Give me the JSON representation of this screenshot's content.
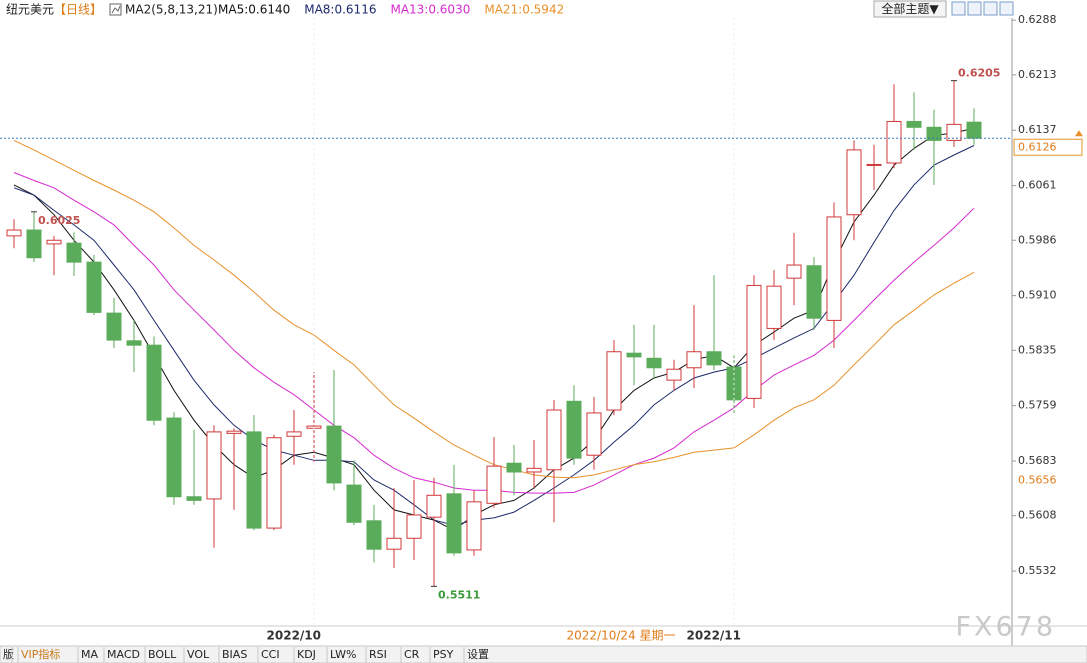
{
  "header": {
    "symbol": "纽元美元",
    "period": "【日线】",
    "indicator": "MA2(5,8,13,21)"
  },
  "chart_data": {
    "type": "candlestick",
    "categories": [
      null,
      null,
      null,
      null,
      null,
      null,
      null,
      null,
      null,
      null,
      null,
      null,
      null,
      null,
      null,
      "2022/10",
      null,
      null,
      null,
      null,
      null,
      null,
      null,
      null,
      null,
      null,
      null,
      null,
      null,
      null,
      null,
      null,
      null,
      null,
      null,
      null,
      "2022/11",
      null,
      null,
      null,
      null,
      null,
      null,
      null,
      null,
      null,
      null,
      null,
      null
    ],
    "open": [
      0.5992,
      0.6,
      0.5981,
      0.5982,
      0.5956,
      0.5886,
      0.5848,
      0.5842,
      0.5742,
      0.5634,
      0.5631,
      0.5721,
      0.5723,
      0.5591,
      0.5717,
      0.5728,
      0.5731,
      0.565,
      0.5601,
      0.5562,
      0.5577,
      0.5606,
      0.5638,
      0.5561,
      0.5625,
      0.568,
      0.5668,
      0.5671,
      0.5765,
      0.5691,
      0.5753,
      0.5831,
      0.5824,
      0.5794,
      0.5811,
      0.5833,
      0.5812,
      0.5769,
      0.5865,
      0.5934,
      0.5951,
      0.5876,
      0.6021,
      0.6089,
      0.6092,
      0.6149,
      0.6141,
      0.6123,
      0.6148
    ],
    "high": [
      0.6015,
      0.6025,
      0.5992,
      0.5997,
      0.5966,
      0.5907,
      0.5876,
      0.5854,
      0.575,
      0.5726,
      0.5732,
      0.5728,
      0.5746,
      0.5719,
      0.5753,
      0.5805,
      0.5808,
      0.5684,
      0.5623,
      0.5646,
      0.5657,
      0.566,
      0.5678,
      0.5643,
      0.5716,
      0.5705,
      0.5712,
      0.5767,
      0.5787,
      0.5771,
      0.5849,
      0.587,
      0.587,
      0.5822,
      0.5897,
      0.5938,
      0.5828,
      0.5938,
      0.5945,
      0.5996,
      0.5963,
      0.6038,
      0.6123,
      0.6117,
      0.62,
      0.6189,
      0.6165,
      0.6205,
      0.6167
    ],
    "low": [
      0.5975,
      0.5956,
      0.5938,
      0.5937,
      0.5883,
      0.5838,
      0.5805,
      0.5732,
      0.5623,
      0.5623,
      0.5564,
      0.5616,
      0.5588,
      0.5588,
      0.5678,
      0.5682,
      0.5643,
      0.5595,
      0.5544,
      0.5536,
      0.5547,
      0.5511,
      0.5553,
      0.5553,
      0.5619,
      0.5636,
      0.5646,
      0.5599,
      0.5678,
      0.5671,
      0.5746,
      0.5787,
      0.5797,
      0.578,
      0.5783,
      0.5808,
      0.5746,
      0.5756,
      0.5849,
      0.5897,
      0.5863,
      0.5838,
      0.5986,
      0.6055,
      0.6085,
      0.611,
      0.6062,
      0.6114,
      0.6117
    ],
    "close": [
      0.6,
      0.5962,
      0.5986,
      0.5956,
      0.5887,
      0.5849,
      0.5842,
      0.5739,
      0.5634,
      0.5629,
      0.5723,
      0.5724,
      0.5591,
      0.5715,
      0.5723,
      0.5731,
      0.5653,
      0.5599,
      0.5562,
      0.5577,
      0.5609,
      0.5636,
      0.5557,
      0.5627,
      0.5676,
      0.5668,
      0.5673,
      0.5753,
      0.5687,
      0.5749,
      0.5833,
      0.5826,
      0.5811,
      0.5809,
      0.5833,
      0.5815,
      0.5767,
      0.5924,
      0.5923,
      0.5952,
      0.5879,
      0.6018,
      0.611,
      0.609,
      0.6149,
      0.6141,
      0.6123,
      0.6145,
      0.6126
    ],
    "up_color": "#d0383a",
    "down_color": "#5aab5a",
    "series": [
      {
        "name": "MA5:0.6140",
        "color": "#111111",
        "values": [
          0.6062,
          0.6048,
          0.6021,
          0.5986,
          0.5956,
          0.5918,
          0.5876,
          0.5828,
          0.578,
          0.5739,
          0.5705,
          0.5678,
          0.566,
          0.5671,
          0.5691,
          0.5695,
          0.5687,
          0.5678,
          0.5643,
          0.5616,
          0.5609,
          0.5602,
          0.5588,
          0.5609,
          0.5623,
          0.5629,
          0.5646,
          0.5671,
          0.5687,
          0.5712,
          0.5753,
          0.578,
          0.5797,
          0.5805,
          0.5822,
          0.5828,
          0.5811,
          0.5842,
          0.586,
          0.5879,
          0.589,
          0.5956,
          0.6011,
          0.6048,
          0.6089,
          0.6112,
          0.613,
          0.6133,
          0.614
        ]
      },
      {
        "name": "MA8:0.6116",
        "color": "#1c2a6b",
        "values": [
          0.6058,
          0.6048,
          0.6027,
          0.6007,
          0.5986,
          0.5952,
          0.5918,
          0.5876,
          0.5835,
          0.5794,
          0.576,
          0.5732,
          0.5712,
          0.5698,
          0.5691,
          0.5684,
          0.5684,
          0.5682,
          0.5657,
          0.5643,
          0.5623,
          0.5602,
          0.5595,
          0.5602,
          0.5605,
          0.5613,
          0.5629,
          0.5646,
          0.5664,
          0.5684,
          0.5709,
          0.5732,
          0.576,
          0.578,
          0.5797,
          0.5805,
          0.5811,
          0.5824,
          0.5838,
          0.5852,
          0.5865,
          0.5901,
          0.5938,
          0.5983,
          0.6027,
          0.6062,
          0.6089,
          0.6103,
          0.6116
        ]
      },
      {
        "name": "MA13:0.6030",
        "color": "#d62bd0",
        "values": [
          0.6079,
          0.6068,
          0.6058,
          0.6041,
          0.6025,
          0.6007,
          0.5979,
          0.5952,
          0.5918,
          0.589,
          0.5863,
          0.5835,
          0.5811,
          0.5791,
          0.5774,
          0.5753,
          0.5732,
          0.5715,
          0.5691,
          0.5673,
          0.566,
          0.5654,
          0.5646,
          0.5643,
          0.5643,
          0.564,
          0.5639,
          0.5639,
          0.564,
          0.565,
          0.5664,
          0.5678,
          0.5687,
          0.5701,
          0.5723,
          0.5739,
          0.5756,
          0.578,
          0.5801,
          0.5815,
          0.5828,
          0.5849,
          0.5876,
          0.5904,
          0.5931,
          0.5956,
          0.5979,
          0.6003,
          0.603
        ]
      },
      {
        "name": "MA21:0.5942",
        "color": "#e8902a",
        "values": [
          0.6123,
          0.611,
          0.6096,
          0.6082,
          0.6068,
          0.6055,
          0.6041,
          0.6025,
          0.6003,
          0.5979,
          0.5959,
          0.5938,
          0.5915,
          0.589,
          0.587,
          0.5856,
          0.5835,
          0.5815,
          0.5787,
          0.576,
          0.5742,
          0.5723,
          0.5705,
          0.5691,
          0.5678,
          0.5671,
          0.5664,
          0.5661,
          0.566,
          0.5664,
          0.5671,
          0.5678,
          0.5682,
          0.5688,
          0.5695,
          0.5698,
          0.5701,
          0.5719,
          0.5739,
          0.5756,
          0.5767,
          0.5787,
          0.5815,
          0.5842,
          0.587,
          0.589,
          0.5911,
          0.5927,
          0.5942
        ]
      }
    ],
    "ylim": [
      0.5458,
      0.6291
    ],
    "yticks": [
      0.6288,
      0.6213,
      0.6137,
      0.6061,
      0.5986,
      {
        "value": 0.591,
        "label": "0.5910"
      },
      0.5835,
      0.5759,
      0.5683,
      0.5608,
      0.5532
    ],
    "last_price": 0.6126,
    "crosshair": {
      "date": "2022/10/24 星期一",
      "price": 0.5656
    }
  },
  "toolbar": {
    "theme_button": "全部主题▼",
    "tabs": [
      "版",
      "VIP指标",
      "MA",
      "MACD",
      "BOLL",
      "VOL",
      "BIAS",
      "CCI",
      "KDJ",
      "LW%",
      "RSI",
      "CR",
      "PSY",
      "设置"
    ]
  },
  "watermark": "FX678"
}
